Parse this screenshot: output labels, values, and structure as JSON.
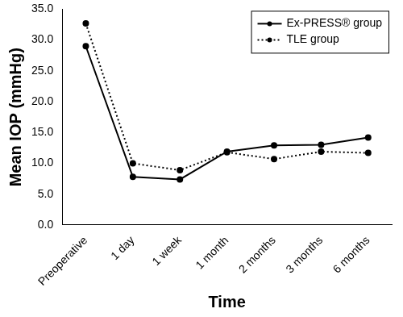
{
  "chart_data": {
    "type": "line",
    "x_label": "Time",
    "y_label": "Mean IOP (mmHg)",
    "categories": [
      "Preoperative",
      "1 day",
      "1 week",
      "1 month",
      "2 months",
      "3 months",
      "6 months"
    ],
    "series": [
      {
        "name": "Ex-PRESS® group",
        "color": "#000000",
        "marker": "circle",
        "line_style": "solid",
        "values": [
          29.0,
          7.8,
          7.4,
          11.9,
          12.9,
          13.0,
          14.2
        ]
      },
      {
        "name": "TLE group",
        "color": "#000000",
        "marker": "circle",
        "line_style": "dotted",
        "values": [
          32.7,
          10.0,
          8.9,
          11.8,
          10.7,
          11.9,
          11.7
        ]
      }
    ],
    "ylim": [
      0,
      35
    ],
    "yticks": [
      {
        "value": 0,
        "label": "0.0"
      },
      {
        "value": 5,
        "label": "5.0"
      },
      {
        "value": 10,
        "label": "10.0"
      },
      {
        "value": 15,
        "label": "15.0"
      },
      {
        "value": 20,
        "label": "20.0"
      },
      {
        "value": 25,
        "label": "25.0"
      },
      {
        "value": 30,
        "label": "30.0"
      },
      {
        "value": 35,
        "label": "35.0"
      }
    ],
    "grid": false,
    "legend": "top-right"
  }
}
